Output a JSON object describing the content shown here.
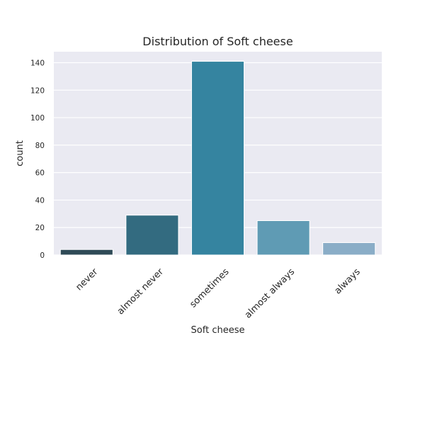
{
  "chart_data": {
    "type": "bar",
    "title": "Distribution of Soft cheese",
    "xlabel": "Soft cheese",
    "ylabel": "count",
    "categories": [
      "never",
      "almost never",
      "sometimes",
      "almost always",
      "always"
    ],
    "values": [
      4,
      29,
      141,
      25,
      9
    ],
    "colors": [
      "#2f4b57",
      "#336b80",
      "#3584a0",
      "#5f9bb4",
      "#8aadc7"
    ],
    "yticks": [
      0,
      20,
      40,
      60,
      80,
      100,
      120,
      140
    ],
    "ylim": [
      0,
      148
    ],
    "grid": true,
    "background": "#eaeaf2"
  }
}
